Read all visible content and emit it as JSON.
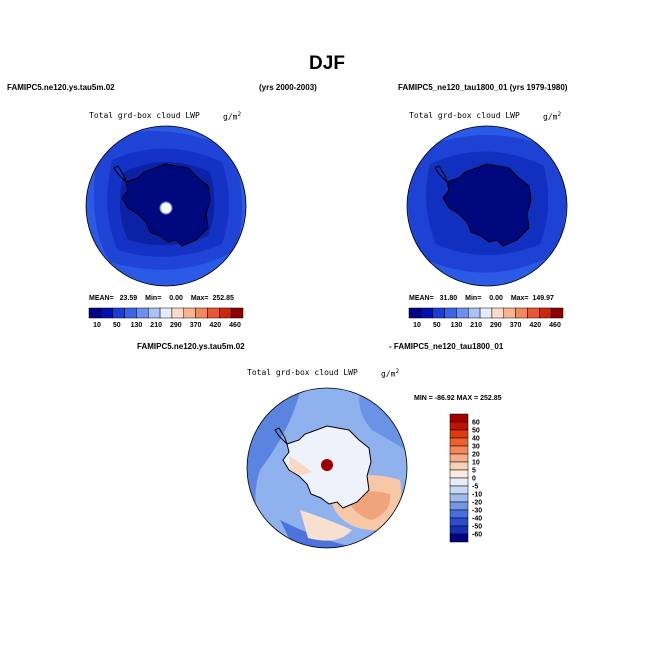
{
  "page": {
    "title": "DJF"
  },
  "left_panel": {
    "case": "FAMIPC5.ne120.ys.tau5m.02",
    "years": "(yrs 2000-2003)",
    "variable": "Total grd-box cloud LWP",
    "units": "g/m",
    "units_exp": "2",
    "mean_label": "MEAN=",
    "mean_value": "23.59",
    "min_label": "Min=",
    "min_value": "0.00",
    "max_label": "Max=",
    "max_value": "252.85"
  },
  "right_panel": {
    "case": "FAMIPC5_ne120_tau1800_01",
    "years": "(yrs 1979-1980)",
    "variable": "Total grd-box cloud LWP",
    "units": "g/m",
    "units_exp": "2",
    "mean_label": "MEAN=",
    "mean_value": "31.80",
    "min_label": "Min=",
    "min_value": "0.00",
    "max_label": "Max=",
    "max_value": "149.97"
  },
  "diff_panel": {
    "case_a": "FAMIPC5.ne120.ys.tau5m.02",
    "case_b": "- FAMIPC5_ne120_tau1800_01",
    "variable": "Total grd-box cloud LWP",
    "units": "g/m",
    "units_exp": "2",
    "minmax": "MIN = -86.92  MAX = 252.85"
  },
  "abs_colorbar": {
    "labels": [
      "10",
      "50",
      "130",
      "210",
      "290",
      "370",
      "420",
      "460"
    ],
    "colors": [
      "#00008a",
      "#0010b4",
      "#1a3cd6",
      "#3a64ec",
      "#6a92f2",
      "#a8c2f6",
      "#e4ecfa",
      "#fadcc8",
      "#f6b490",
      "#f08a5e",
      "#e45a34",
      "#c8280e",
      "#8a0000"
    ]
  },
  "diff_colorbar": {
    "labels": [
      "60",
      "50",
      "40",
      "30",
      "20",
      "10",
      "5",
      "0",
      "-5",
      "-10",
      "-20",
      "-30",
      "-40",
      "-50",
      "-60"
    ],
    "colors": [
      "#a00000",
      "#c01400",
      "#e03a10",
      "#f0602e",
      "#f4885a",
      "#f6ae86",
      "#f8d2b6",
      "#faeae0",
      "#e4eef8",
      "#c6d8f2",
      "#a0bcec",
      "#7298e4",
      "#4870dc",
      "#2a4cd0",
      "#1430b4",
      "#000080"
    ]
  }
}
